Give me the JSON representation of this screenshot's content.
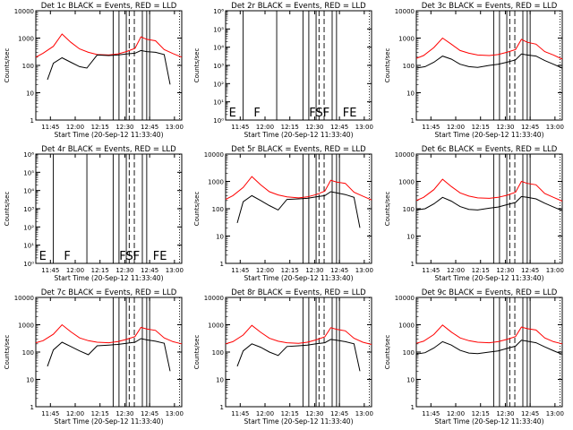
{
  "figure": {
    "x_label": "Start Time (20-Sep-12 11:33:40)",
    "y_label": "Counts/sec",
    "time_ticks": [
      "11:45",
      "12:00",
      "12:15",
      "12:30",
      "12:45",
      "13:00"
    ],
    "colors": {
      "events": "#000000",
      "lld": "#ff0000",
      "axes": "#000000"
    }
  },
  "chart_data": [
    {
      "type": "line",
      "title": "Det 1c BLACK = Events, RED = LLD",
      "has_data": true,
      "ylim": [
        1,
        10000
      ],
      "y_scale": "log",
      "yticks": [
        "1",
        "10",
        "100",
        "1000",
        "10000"
      ],
      "series": [
        {
          "x": [
            0.0,
            0.05,
            0.12,
            0.18,
            0.24,
            0.3,
            0.36,
            0.42,
            0.5,
            0.56,
            0.62,
            0.68,
            0.72,
            0.76,
            0.82,
            0.88,
            0.94,
            1.0
          ],
          "values": [
            200,
            280,
            500,
            1400,
            700,
            400,
            300,
            250,
            240,
            260,
            320,
            420,
            1100,
            900,
            800,
            380,
            270,
            200
          ]
        },
        {
          "x": [
            0.08,
            0.12,
            0.18,
            0.24,
            0.3,
            0.35,
            0.42,
            0.5,
            0.56,
            0.62,
            0.68,
            0.72,
            0.76,
            0.82,
            0.88,
            0.92
          ],
          "values": [
            30,
            120,
            190,
            130,
            90,
            80,
            240,
            230,
            240,
            260,
            280,
            350,
            320,
            300,
            250,
            20
          ]
        }
      ],
      "annotations": []
    },
    {
      "type": "line",
      "title": "Det 2r BLACK = Events, RED = LLD",
      "has_data": false,
      "ylim": [
        1,
        1000000
      ],
      "y_scale": "log",
      "yticks": [
        "10⁰",
        "10¹",
        "10²",
        "10³",
        "10⁴",
        "10⁵",
        "10⁶"
      ],
      "series": [],
      "annotations": [
        "E",
        "F",
        "FSF",
        "FE"
      ]
    },
    {
      "type": "line",
      "title": "Det 3c BLACK = Events, RED = LLD",
      "has_data": true,
      "ylim": [
        1,
        10000
      ],
      "y_scale": "log",
      "yticks": [
        "1",
        "10",
        "100",
        "1000",
        "10000"
      ],
      "series": [
        {
          "x": [
            0.0,
            0.05,
            0.12,
            0.18,
            0.24,
            0.3,
            0.36,
            0.42,
            0.5,
            0.56,
            0.62,
            0.68,
            0.72,
            0.76,
            0.82,
            0.88,
            0.94,
            1.0
          ],
          "values": [
            180,
            230,
            450,
            1000,
            600,
            350,
            280,
            240,
            230,
            250,
            300,
            380,
            900,
            700,
            600,
            320,
            240,
            170
          ]
        },
        {
          "x": [
            0.0,
            0.06,
            0.12,
            0.18,
            0.24,
            0.3,
            0.36,
            0.42,
            0.5,
            0.56,
            0.62,
            0.68,
            0.72,
            0.76,
            0.82,
            0.88,
            0.94,
            1.0
          ],
          "values": [
            80,
            90,
            130,
            220,
            170,
            110,
            90,
            85,
            100,
            110,
            130,
            160,
            260,
            240,
            220,
            150,
            110,
            80
          ]
        }
      ],
      "annotations": []
    },
    {
      "type": "line",
      "title": "Det 4r BLACK = Events, RED = LLD",
      "has_data": false,
      "ylim": [
        1,
        1000000
      ],
      "y_scale": "log",
      "yticks": [
        "10⁰",
        "10¹",
        "10²",
        "10³",
        "10⁴",
        "10⁵",
        "10⁶"
      ],
      "series": [],
      "annotations": [
        "E",
        "F",
        "FSF",
        "FE"
      ]
    },
    {
      "type": "line",
      "title": "Det 5r BLACK = Events, RED = LLD",
      "has_data": true,
      "ylim": [
        1,
        10000
      ],
      "y_scale": "log",
      "yticks": [
        "1",
        "10",
        "100",
        "1000",
        "10000"
      ],
      "series": [
        {
          "x": [
            0.0,
            0.05,
            0.12,
            0.18,
            0.24,
            0.3,
            0.36,
            0.42,
            0.5,
            0.56,
            0.62,
            0.68,
            0.72,
            0.76,
            0.82,
            0.88,
            0.94,
            1.0
          ],
          "values": [
            220,
            300,
            600,
            1500,
            750,
            420,
            320,
            270,
            250,
            270,
            330,
            440,
            1100,
            950,
            850,
            400,
            290,
            210
          ]
        },
        {
          "x": [
            0.08,
            0.12,
            0.18,
            0.24,
            0.3,
            0.36,
            0.42,
            0.5,
            0.56,
            0.62,
            0.68,
            0.72,
            0.76,
            0.82,
            0.88,
            0.92
          ],
          "values": [
            30,
            180,
            300,
            200,
            130,
            90,
            220,
            230,
            240,
            270,
            300,
            420,
            380,
            330,
            260,
            20
          ]
        }
      ],
      "annotations": []
    },
    {
      "type": "line",
      "title": "Det 6c BLACK = Events, RED = LLD",
      "has_data": true,
      "ylim": [
        1,
        10000
      ],
      "y_scale": "log",
      "yticks": [
        "1",
        "10",
        "100",
        "1000",
        "10000"
      ],
      "series": [
        {
          "x": [
            0.0,
            0.05,
            0.12,
            0.18,
            0.24,
            0.3,
            0.36,
            0.42,
            0.5,
            0.56,
            0.62,
            0.68,
            0.72,
            0.76,
            0.82,
            0.88,
            0.94,
            1.0
          ],
          "values": [
            200,
            260,
            500,
            1200,
            650,
            380,
            290,
            250,
            240,
            260,
            310,
            400,
            1000,
            850,
            750,
            360,
            260,
            190
          ]
        },
        {
          "x": [
            0.0,
            0.06,
            0.12,
            0.18,
            0.24,
            0.3,
            0.36,
            0.42,
            0.5,
            0.56,
            0.62,
            0.68,
            0.72,
            0.76,
            0.82,
            0.88,
            0.94,
            1.0
          ],
          "values": [
            90,
            100,
            150,
            260,
            190,
            120,
            95,
            90,
            105,
            115,
            140,
            170,
            280,
            260,
            230,
            160,
            115,
            85
          ]
        }
      ],
      "annotations": []
    },
    {
      "type": "line",
      "title": "Det 7c BLACK = Events, RED = LLD",
      "has_data": true,
      "ylim": [
        1,
        10000
      ],
      "y_scale": "log",
      "yticks": [
        "1",
        "10",
        "100",
        "1000",
        "10000"
      ],
      "series": [
        {
          "x": [
            0.0,
            0.05,
            0.12,
            0.18,
            0.24,
            0.3,
            0.36,
            0.42,
            0.5,
            0.56,
            0.62,
            0.68,
            0.72,
            0.76,
            0.82,
            0.88,
            0.94,
            1.0
          ],
          "values": [
            220,
            260,
            450,
            1000,
            550,
            330,
            260,
            230,
            220,
            240,
            290,
            370,
            800,
            700,
            620,
            330,
            240,
            200
          ]
        },
        {
          "x": [
            0.08,
            0.12,
            0.18,
            0.24,
            0.3,
            0.36,
            0.42,
            0.5,
            0.56,
            0.62,
            0.68,
            0.72,
            0.76,
            0.82,
            0.88,
            0.92
          ],
          "values": [
            30,
            120,
            230,
            160,
            110,
            80,
            170,
            180,
            190,
            210,
            230,
            310,
            280,
            250,
            210,
            20
          ]
        }
      ],
      "annotations": []
    },
    {
      "type": "line",
      "title": "Det 8r BLACK = Events, RED = LLD",
      "has_data": true,
      "ylim": [
        1,
        10000
      ],
      "y_scale": "log",
      "yticks": [
        "1",
        "10",
        "100",
        "1000",
        "10000"
      ],
      "series": [
        {
          "x": [
            0.0,
            0.05,
            0.12,
            0.18,
            0.24,
            0.3,
            0.36,
            0.42,
            0.5,
            0.56,
            0.62,
            0.68,
            0.72,
            0.76,
            0.82,
            0.88,
            0.94,
            1.0
          ],
          "values": [
            200,
            240,
            420,
            950,
            530,
            320,
            250,
            220,
            210,
            230,
            280,
            360,
            780,
            680,
            600,
            320,
            230,
            190
          ]
        },
        {
          "x": [
            0.08,
            0.12,
            0.18,
            0.24,
            0.3,
            0.36,
            0.42,
            0.5,
            0.56,
            0.62,
            0.68,
            0.72,
            0.76,
            0.82,
            0.88,
            0.92
          ],
          "values": [
            30,
            110,
            200,
            150,
            100,
            75,
            160,
            170,
            180,
            200,
            220,
            290,
            270,
            240,
            200,
            20
          ]
        }
      ],
      "annotations": []
    },
    {
      "type": "line",
      "title": "Det 9c BLACK = Events, RED = LLD",
      "has_data": true,
      "ylim": [
        1,
        10000
      ],
      "y_scale": "log",
      "yticks": [
        "1",
        "10",
        "100",
        "1000",
        "10000"
      ],
      "series": [
        {
          "x": [
            0.0,
            0.05,
            0.12,
            0.18,
            0.24,
            0.3,
            0.36,
            0.42,
            0.5,
            0.56,
            0.62,
            0.68,
            0.72,
            0.76,
            0.82,
            0.88,
            0.94,
            1.0
          ],
          "values": [
            210,
            250,
            440,
            980,
            540,
            330,
            260,
            230,
            220,
            240,
            290,
            370,
            820,
            720,
            640,
            330,
            240,
            200
          ]
        },
        {
          "x": [
            0.0,
            0.06,
            0.12,
            0.18,
            0.24,
            0.3,
            0.36,
            0.42,
            0.5,
            0.56,
            0.62,
            0.68,
            0.72,
            0.76,
            0.82,
            0.88,
            0.94,
            1.0
          ],
          "values": [
            85,
            95,
            140,
            240,
            180,
            115,
            92,
            88,
            100,
            110,
            135,
            165,
            270,
            250,
            220,
            155,
            112,
            82
          ]
        }
      ],
      "annotations": []
    }
  ]
}
